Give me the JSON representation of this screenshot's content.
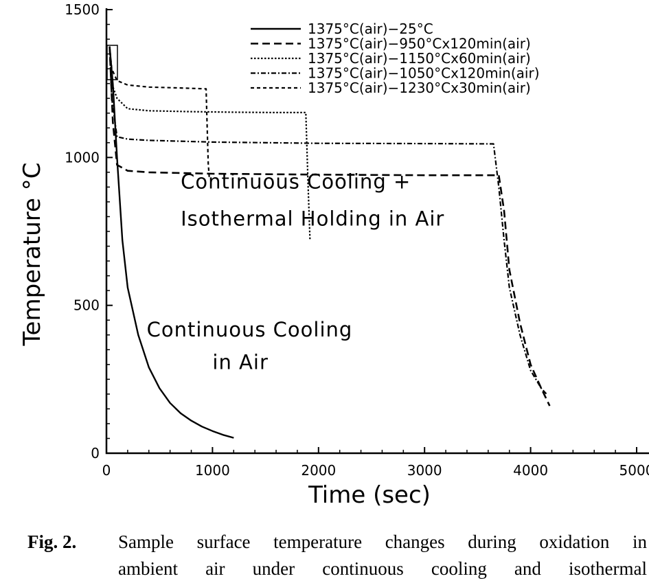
{
  "chart_data": {
    "type": "line",
    "xlabel": "Time (sec)",
    "ylabel": "Temperature °C",
    "xlim": [
      0,
      5000
    ],
    "ylim": [
      0,
      1500
    ],
    "x_ticks": [
      0,
      1000,
      2000,
      3000,
      4000,
      5000
    ],
    "x_tick_labels": [
      "0",
      "1000",
      "2000",
      "3000",
      "4000",
      "5000"
    ],
    "y_ticks": [
      0,
      500,
      1000,
      1500
    ],
    "y_tick_labels": [
      "0",
      "500",
      "1000",
      "1500"
    ],
    "grid": false,
    "legend_position": "top-right",
    "series": [
      {
        "name": "1375°C(air)−25°C",
        "style": "solid",
        "x": [
          30,
          60,
          100,
          150,
          200,
          300,
          400,
          500,
          600,
          700,
          800,
          900,
          1000,
          1100,
          1200
        ],
        "y": [
          1375,
          1250,
          1000,
          720,
          560,
          400,
          290,
          220,
          170,
          135,
          110,
          90,
          75,
          62,
          52
        ]
      },
      {
        "name": "1375°C(air)−950°Cx120min(air)",
        "style": "longdash",
        "x": [
          30,
          60,
          100,
          200,
          400,
          1000,
          2000,
          3000,
          3700,
          3750,
          3800,
          3900,
          4000,
          4100,
          4180
        ],
        "y": [
          1375,
          1120,
          975,
          955,
          950,
          945,
          942,
          940,
          940,
          820,
          620,
          440,
          300,
          220,
          160
        ]
      },
      {
        "name": "1375°C(air)−1150°Cx60min(air)",
        "style": "dotted",
        "x": [
          30,
          50,
          100,
          200,
          400,
          800,
          1200,
          1600,
          1880,
          1900,
          1920
        ],
        "y": [
          1375,
          1250,
          1200,
          1165,
          1158,
          1155,
          1153,
          1152,
          1152,
          920,
          720
        ]
      },
      {
        "name": "1375°C(air)−1050°Cx120min(air)",
        "style": "dashdot",
        "x": [
          30,
          50,
          100,
          200,
          400,
          1000,
          2000,
          3000,
          3650,
          3700,
          3750,
          3800,
          3900,
          4000,
          4100,
          4150
        ],
        "y": [
          1375,
          1200,
          1070,
          1062,
          1058,
          1052,
          1048,
          1047,
          1046,
          900,
          720,
          560,
          400,
          280,
          220,
          200
        ]
      },
      {
        "name": "1375°C(air)−1230°Cx30min(air)",
        "style": "shortdash",
        "x": [
          30,
          50,
          100,
          200,
          400,
          700,
          940,
          950,
          960,
          970
        ],
        "y": [
          1375,
          1300,
          1260,
          1245,
          1238,
          1235,
          1232,
          1100,
          980,
          930
        ]
      }
    ],
    "annotations": [
      {
        "text": "Continuous  Cooling  +",
        "x": 700,
        "y": 895
      },
      {
        "text": "Isothermal  Holding  in  Air",
        "x": 700,
        "y": 770
      },
      {
        "text": "Continuous  Cooling",
        "x": 380,
        "y": 395
      },
      {
        "text": "in  Air",
        "x": 1000,
        "y": 285
      }
    ]
  },
  "caption": {
    "label": "Fig.  2.",
    "line1": "Sample surface temperature changes during oxidation in",
    "line2": "ambient air under continuous cooling and isothermal"
  }
}
